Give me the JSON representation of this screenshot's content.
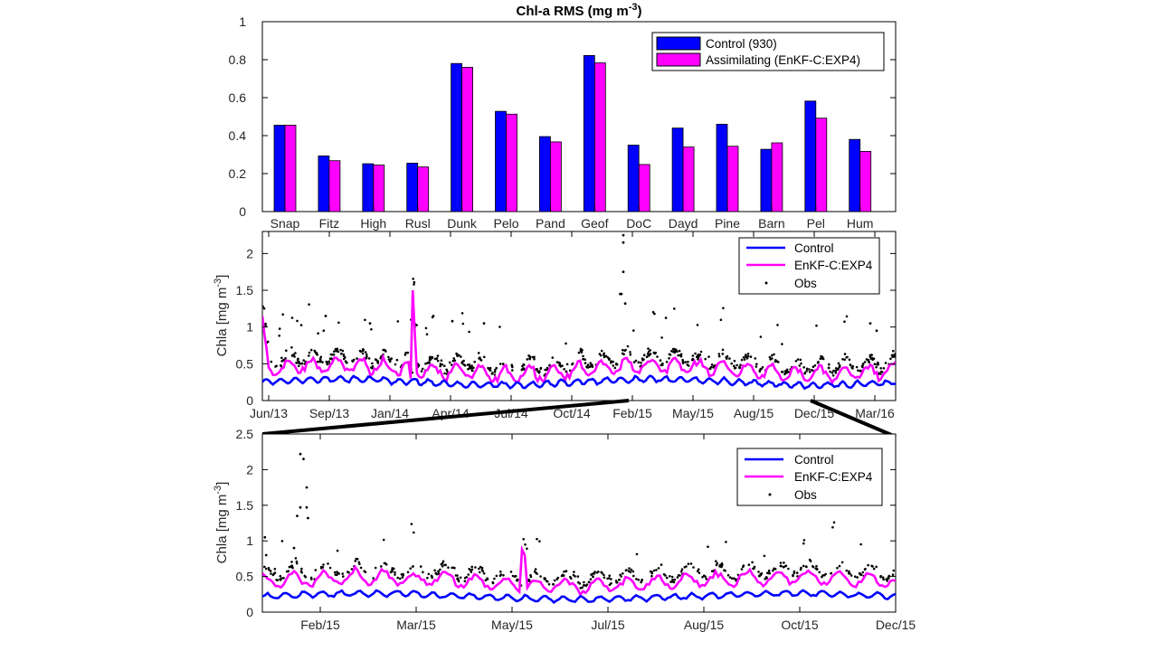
{
  "chart_data": [
    {
      "type": "bar",
      "title": "Chl-a RMS (mg m",
      "title_sup": "-3",
      "title_close": ")",
      "categories": [
        "Snap",
        "Fitz",
        "High",
        "Rusl",
        "Dunk",
        "Pelo",
        "Pand",
        "Geof",
        "DoC",
        "Dayd",
        "Pine",
        "Barn",
        "Pel",
        "Hum"
      ],
      "series": [
        {
          "name": "Control (930)",
          "color": "#0000ff",
          "values": [
            0.455,
            0.293,
            0.252,
            0.255,
            0.78,
            0.528,
            0.395,
            0.822,
            0.35,
            0.44,
            0.46,
            0.328,
            0.582,
            0.38
          ]
        },
        {
          "name": "Assimilating (EnKF-C:EXP4)",
          "color": "#ff00ff",
          "values": [
            0.455,
            0.268,
            0.245,
            0.235,
            0.76,
            0.513,
            0.367,
            0.783,
            0.248,
            0.34,
            0.344,
            0.362,
            0.492,
            0.317
          ]
        }
      ],
      "ylim": [
        0,
        1
      ],
      "yticks": [
        "0",
        "0.2",
        "0.4",
        "0.6",
        "0.8",
        "1"
      ],
      "legend": "top-right"
    },
    {
      "type": "line",
      "ylabel": "Chla [mg m",
      "ylabel_sup": "-3",
      "ylabel_close": "]",
      "ylim": [
        0,
        2.3
      ],
      "yticks": [
        "0",
        "0.5",
        "1",
        "1.5",
        "2"
      ],
      "xticks": [
        "Jun/13",
        "Sep/13",
        "Jan/14",
        "Apr/14",
        "Jul/14",
        "Oct/14",
        "Feb/15",
        "May/15",
        "Aug/15",
        "Dec/15",
        "Mar/16"
      ],
      "series": [
        {
          "name": "Control",
          "color": "#0000ff",
          "style": "line"
        },
        {
          "name": "EnKF-C:EXP4",
          "color": "#ff00ff",
          "style": "line"
        },
        {
          "name": "Obs",
          "color": "#000000",
          "style": "dots"
        }
      ],
      "legend": "top-right"
    },
    {
      "type": "line",
      "ylabel": "Chla [mg m",
      "ylabel_sup": "-3",
      "ylabel_close": "]",
      "ylim": [
        0,
        2.5
      ],
      "yticks": [
        "0",
        "0.5",
        "1",
        "1.5",
        "2",
        "2.5"
      ],
      "xticks": [
        "Feb/15",
        "Mar/15",
        "May/15",
        "Jul/15",
        "Aug/15",
        "Oct/15",
        "Dec/15"
      ],
      "series": [
        {
          "name": "Control",
          "color": "#0000ff",
          "style": "line"
        },
        {
          "name": "EnKF-C:EXP4",
          "color": "#ff00ff",
          "style": "line"
        },
        {
          "name": "Obs",
          "color": "#000000",
          "style": "dots"
        }
      ],
      "legend": "top-right"
    }
  ]
}
